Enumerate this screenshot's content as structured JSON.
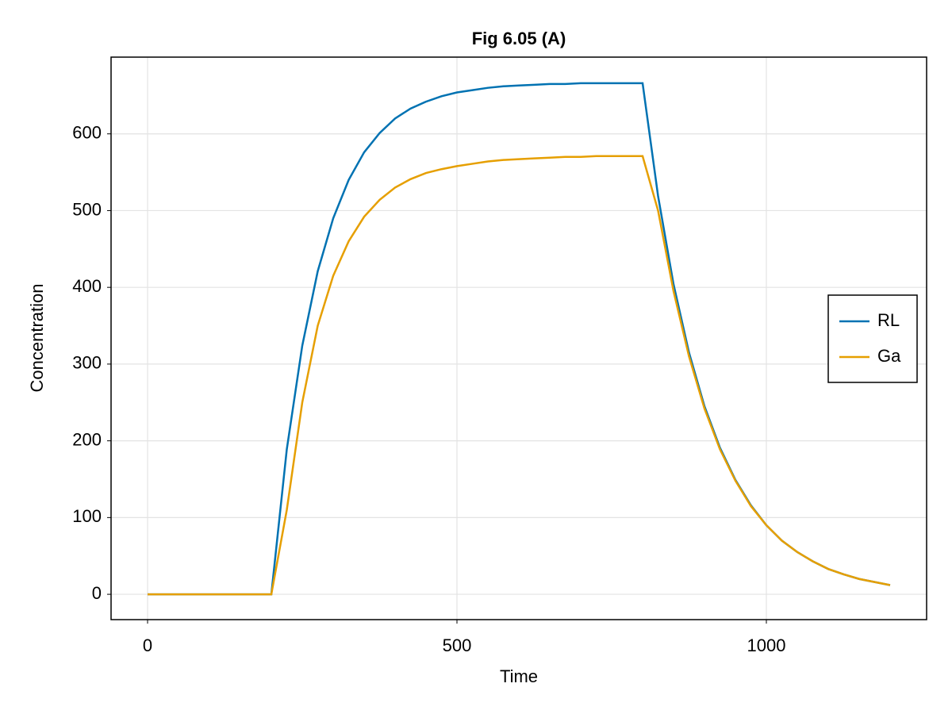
{
  "chart_data": {
    "type": "line",
    "title": "Fig 6.05 (A)",
    "x_label": "Time",
    "y_label": "Concentration",
    "x": [
      0,
      25,
      50,
      75,
      100,
      125,
      150,
      175,
      200,
      225,
      250,
      275,
      300,
      325,
      350,
      375,
      400,
      425,
      450,
      475,
      500,
      525,
      550,
      575,
      600,
      625,
      650,
      675,
      700,
      725,
      750,
      775,
      800,
      825,
      850,
      875,
      900,
      925,
      950,
      975,
      1000,
      1025,
      1050,
      1075,
      1100,
      1125,
      1150,
      1175,
      1200
    ],
    "series": [
      {
        "name": "RL",
        "color": "#0072b2",
        "values": [
          0,
          0,
          0,
          0,
          0,
          0,
          0,
          0,
          0,
          189,
          324,
          421,
          490,
          540,
          576,
          601,
          620,
          633,
          642,
          649,
          654,
          657,
          660,
          662,
          663,
          664,
          665,
          665,
          666,
          666,
          666,
          666,
          666,
          519,
          404,
          315,
          245,
          191,
          149,
          116,
          90,
          70,
          55,
          43,
          33,
          26,
          20,
          16,
          12
        ]
      },
      {
        "name": "Ga",
        "color": "#e69f00",
        "values": [
          0,
          0,
          0,
          0,
          0,
          0,
          0,
          0,
          0,
          110,
          250,
          350,
          415,
          460,
          492,
          514,
          530,
          541,
          549,
          554,
          558,
          561,
          564,
          566,
          567,
          568,
          569,
          570,
          570,
          571,
          571,
          571,
          571,
          500,
          395,
          310,
          242,
          189,
          148,
          115,
          90,
          70,
          55,
          43,
          33,
          26,
          20,
          16,
          12
        ]
      }
    ],
    "xlim": [
      -59,
      1259
    ],
    "ylim": [
      -33,
      700
    ],
    "xticks": [
      0,
      500,
      1000
    ],
    "yticks": [
      0,
      100,
      200,
      300,
      400,
      500,
      600
    ],
    "grid": true,
    "legend": "right"
  }
}
